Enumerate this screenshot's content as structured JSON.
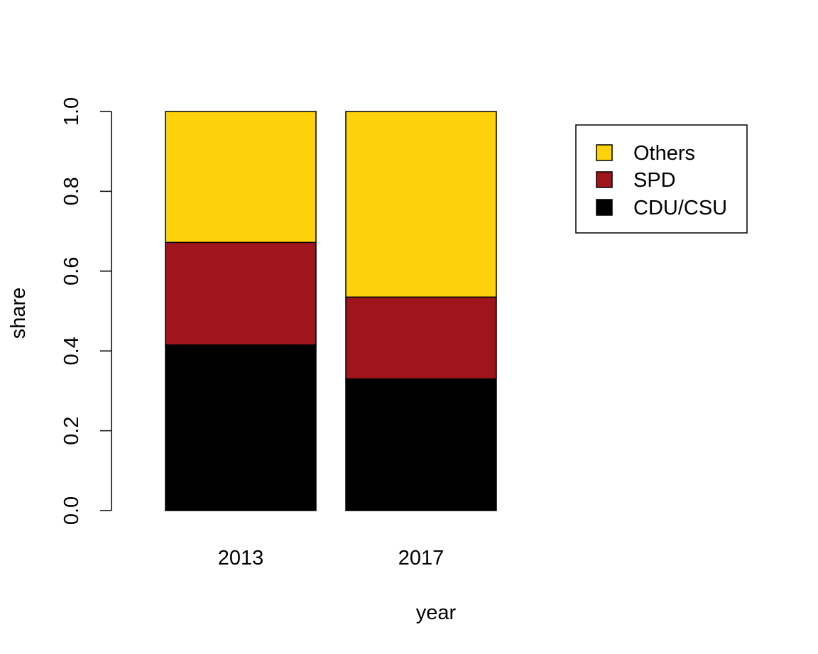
{
  "chart_data": {
    "type": "bar",
    "stacked": true,
    "categories": [
      "2013",
      "2017"
    ],
    "series": [
      {
        "name": "CDU/CSU",
        "values": [
          0.415,
          0.33
        ],
        "color": "#000000"
      },
      {
        "name": "SPD",
        "values": [
          0.257,
          0.205
        ],
        "color": "#A0141C"
      },
      {
        "name": "Others",
        "values": [
          0.328,
          0.465
        ],
        "color": "#FDD20A"
      }
    ],
    "legend_order": [
      "Others",
      "SPD",
      "CDU/CSU"
    ],
    "legend_position": "top-right",
    "xlabel": "year",
    "ylabel": "share",
    "ylim": [
      0,
      1
    ],
    "yticks": [
      "0.0",
      "0.2",
      "0.4",
      "0.6",
      "0.8",
      "1.0"
    ],
    "grid": false
  }
}
